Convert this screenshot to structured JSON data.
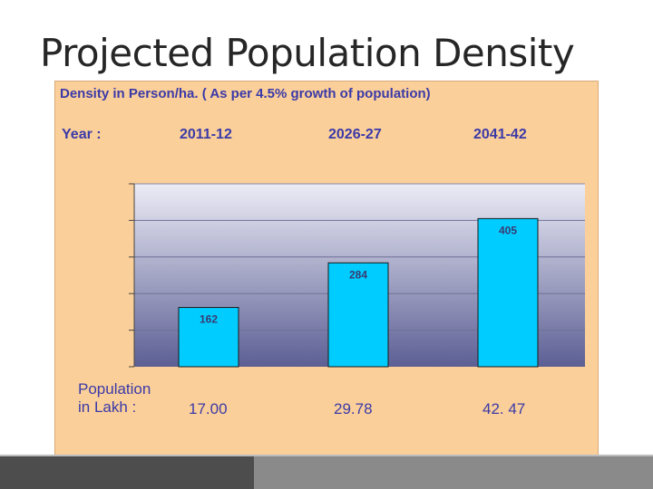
{
  "slide": {
    "title": "Projected Population Density"
  },
  "panel": {
    "subtitle": "Density in Person/ha.   ( As per 4.5% growth of population)",
    "year_label": "Year  :",
    "years": [
      "2011-12",
      "2026-27",
      "2041-42"
    ],
    "population_label_line1": "Population",
    "population_label_line2": "in Lakh :",
    "population_values": [
      "17.00",
      "29.78",
      "42.  47"
    ]
  },
  "colors": {
    "panel_bg": "#fbcf99",
    "bar_fill": "#00ccff",
    "text_blue": "#3b3aa8",
    "plot_gradient_top": "#ececf6",
    "plot_gradient_bottom": "#5c5f94"
  },
  "chart_data": {
    "type": "bar",
    "categories": [
      "2011-12",
      "2026-27",
      "2041-42"
    ],
    "values": [
      162,
      284,
      405
    ],
    "data_labels": [
      "162",
      "284",
      "405"
    ],
    "ylim": [
      0,
      500
    ],
    "grid": true
  }
}
